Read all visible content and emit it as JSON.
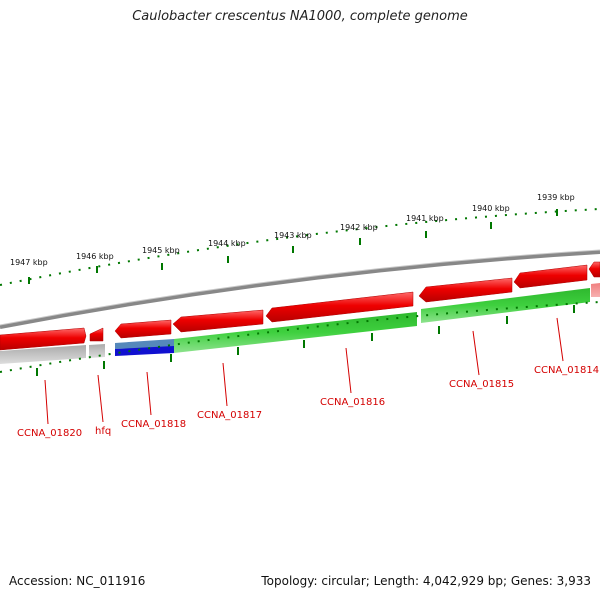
{
  "title": "Caulobacter crescentus NA1000, complete genome",
  "footer": {
    "accession": "Accession: NC_011916",
    "summary": "Topology: circular; Length: 4,042,929 bp; Genes: 3,933"
  },
  "scale_labels": [
    "1947 kbp",
    "1946 kbp",
    "1945 kbp",
    "1944 kbp",
    "1943 kbp",
    "1942 kbp",
    "1941 kbp",
    "1940 kbp",
    "1939 kbp"
  ],
  "gene_labels": [
    "CCNA_01820",
    "hfq",
    "CCNA_01818",
    "CCNA_01817",
    "CCNA_01816",
    "CCNA_01815",
    "CCNA_01814"
  ],
  "colors": {
    "cds": "#e80000",
    "gene": "#33bb33",
    "pseudo_gene": "#bbbbbb",
    "rna": "#1010d0",
    "rna_feature": "#5588bb",
    "backbone": "#888888",
    "tick": "#007700",
    "label": "#d40000"
  }
}
